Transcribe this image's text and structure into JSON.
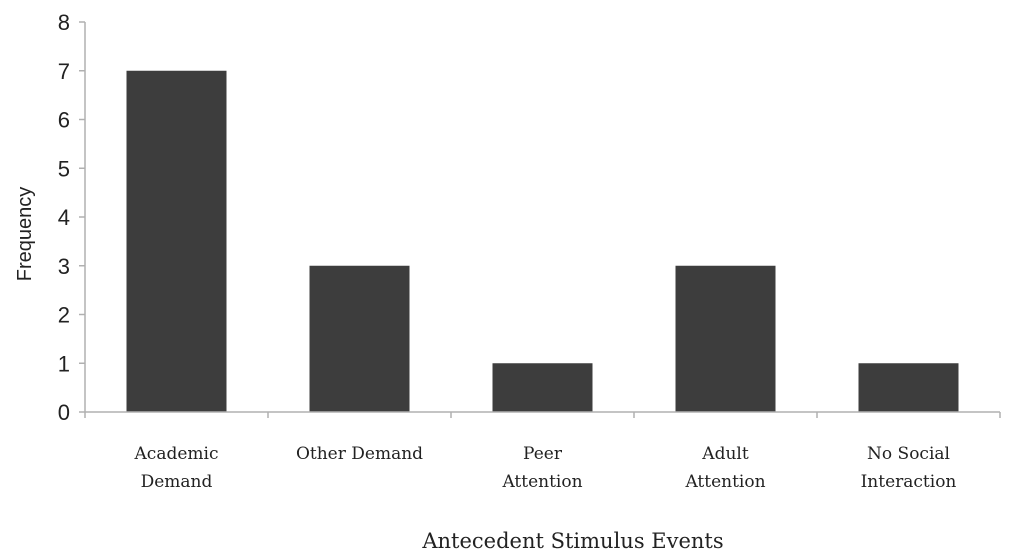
{
  "chart_data": {
    "type": "bar",
    "categories": [
      [
        "Academic",
        "Demand"
      ],
      [
        "Other Demand"
      ],
      [
        "Peer",
        "Attention"
      ],
      [
        "Adult",
        "Attention"
      ],
      [
        "No Social",
        "Interaction"
      ]
    ],
    "values": [
      7,
      3,
      1,
      3,
      1
    ],
    "xlabel": "Antecedent Stimulus Events",
    "ylabel": "Frequency",
    "ylim": [
      0,
      8
    ],
    "yticks": [
      0,
      1,
      2,
      3,
      4,
      5,
      6,
      7,
      8
    ],
    "grid": false,
    "legend": "none",
    "colors": {
      "bar": "#3d3d3d",
      "axis": "#b0b0b0"
    }
  }
}
